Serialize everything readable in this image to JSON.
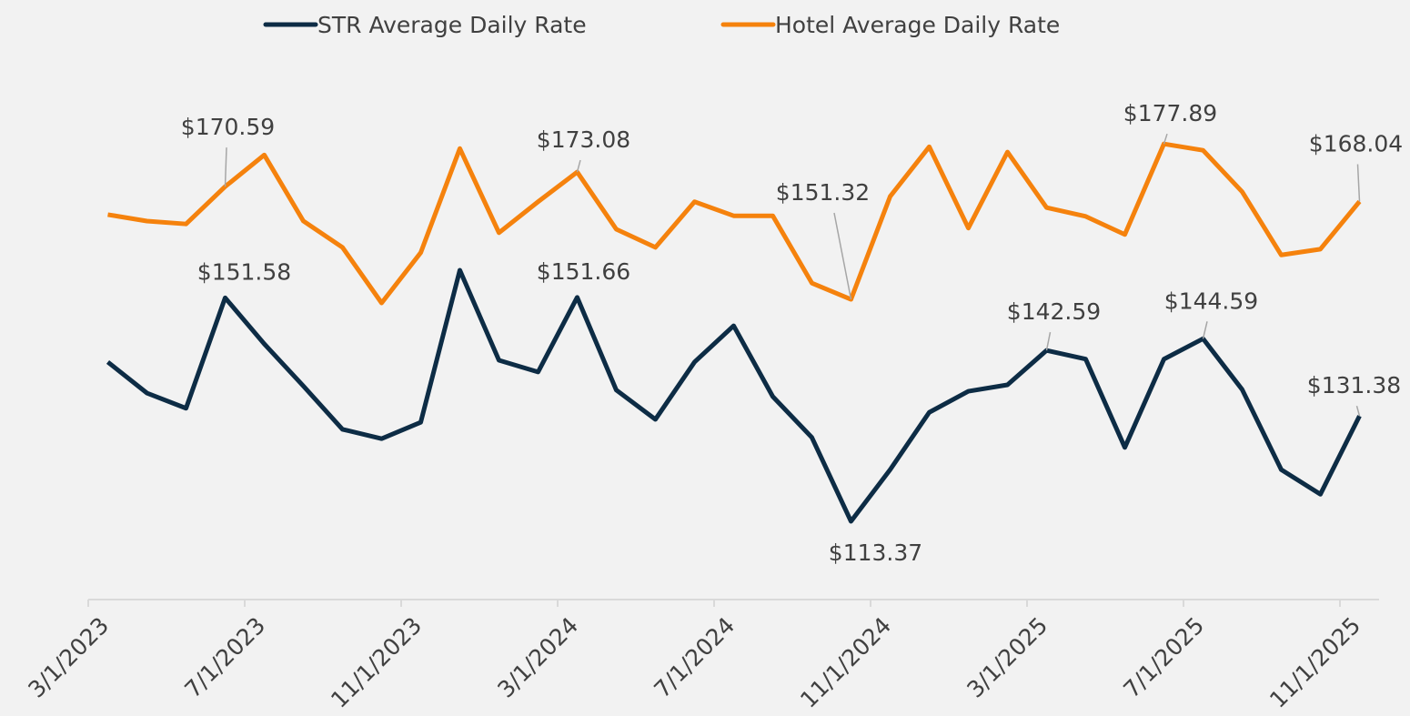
{
  "chart_data": {
    "type": "line",
    "categories": [
      "3/1/2023",
      null,
      null,
      null,
      "7/1/2023",
      null,
      null,
      null,
      "11/1/2023",
      null,
      null,
      null,
      "3/1/2024",
      null,
      null,
      null,
      "7/1/2024",
      null,
      null,
      null,
      "11/1/2024",
      null,
      null,
      null,
      "3/1/2025",
      null,
      null,
      null,
      "7/1/2025",
      null,
      null,
      null,
      "11/1/2025"
    ],
    "series": [
      {
        "name": "STR Average Daily Rate",
        "color": "#0d2c45",
        "values": [
          140.6,
          135.3,
          132.7,
          151.58,
          143.7,
          136.5,
          129.1,
          127.5,
          130.3,
          156.3,
          140.9,
          138.9,
          151.66,
          135.8,
          130.8,
          140.6,
          146.8,
          134.7,
          127.7,
          113.37,
          122.2,
          132.0,
          135.6,
          136.7,
          142.59,
          141.1,
          126.0,
          141.1,
          144.59,
          135.9,
          122.2,
          118.0,
          131.38
        ],
        "value_labels": [
          null,
          null,
          null,
          "$151.58",
          null,
          null,
          null,
          null,
          null,
          null,
          null,
          null,
          "$151.66",
          null,
          null,
          null,
          null,
          null,
          null,
          "$113.37",
          null,
          null,
          null,
          null,
          "$142.59",
          null,
          null,
          null,
          "$144.59",
          null,
          null,
          null,
          "$131.38"
        ]
      },
      {
        "name": "Hotel Average Daily Rate",
        "color": "#f5820d",
        "values": [
          165.8,
          164.7,
          164.2,
          170.59,
          176.0,
          164.7,
          160.2,
          150.7,
          159.3,
          177.1,
          162.7,
          168.0,
          173.08,
          163.3,
          160.2,
          168.0,
          165.6,
          165.6,
          154.1,
          151.32,
          168.9,
          177.4,
          163.5,
          176.5,
          167.0,
          165.5,
          162.4,
          177.89,
          176.8,
          169.7,
          158.9,
          159.9,
          168.04
        ],
        "value_labels": [
          null,
          null,
          null,
          "$170.59",
          null,
          null,
          null,
          null,
          null,
          null,
          null,
          null,
          "$173.08",
          null,
          null,
          null,
          null,
          null,
          null,
          "$151.32",
          null,
          null,
          null,
          null,
          null,
          null,
          null,
          "$177.89",
          null,
          null,
          null,
          null,
          "$168.04"
        ]
      }
    ],
    "ylim": [
      100,
      200
    ],
    "legend": "top"
  }
}
